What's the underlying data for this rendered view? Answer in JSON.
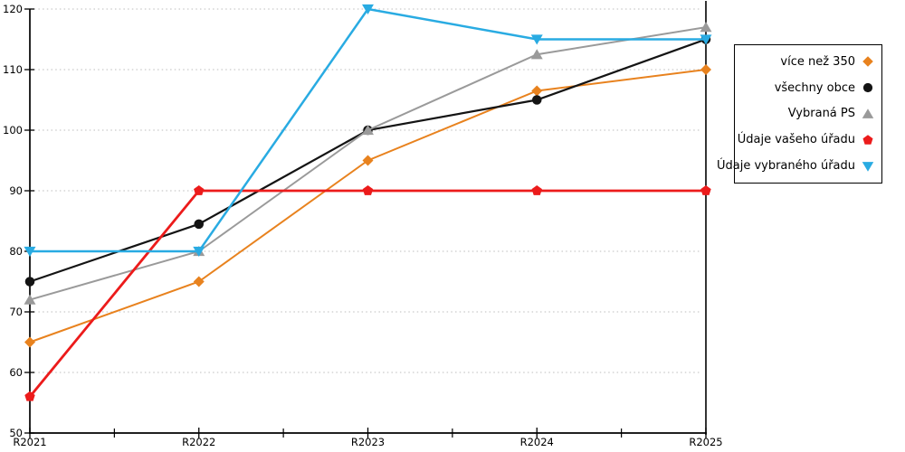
{
  "chart_data": {
    "type": "line",
    "title": "",
    "xlabel": "",
    "ylabel": "",
    "categories": [
      "R2021",
      "R2022",
      "R2023",
      "R2024",
      "R2025"
    ],
    "series": [
      {
        "name": "více než 350",
        "color": "#e8821e",
        "marker": "diamond",
        "line_width": 2,
        "values": [
          65,
          75,
          95,
          106.5,
          110
        ]
      },
      {
        "name": "všechny obce",
        "color": "#141414",
        "marker": "circle",
        "line_width": 2.2,
        "values": [
          75,
          84.5,
          100,
          105,
          115
        ]
      },
      {
        "name": "Vybraná PS",
        "color": "#9a9a9a",
        "marker": "triangle-up",
        "line_width": 2,
        "values": [
          72,
          80,
          100,
          112.5,
          117
        ]
      },
      {
        "name": "Údaje vašeho úřadu",
        "color": "#ec1b1b",
        "marker": "pentagon",
        "line_width": 2.8,
        "values": [
          56,
          90,
          90,
          90,
          90
        ]
      },
      {
        "name": "Údaje vybraného úřadu",
        "color": "#29abe2",
        "marker": "triangle-down",
        "line_width": 2.5,
        "values": [
          80,
          80,
          120,
          115,
          115
        ]
      }
    ],
    "ylim": [
      50,
      120
    ],
    "ytick_step": 10,
    "y_ticks": [
      50,
      60,
      70,
      80,
      90,
      100,
      110,
      120
    ],
    "grid": "dotted-horizontal",
    "grid_color": "#c9c9c9",
    "axis_color": "#000000",
    "background": "#ffffff",
    "legend_position": "right-outside",
    "highlighted_category": "R2025"
  }
}
